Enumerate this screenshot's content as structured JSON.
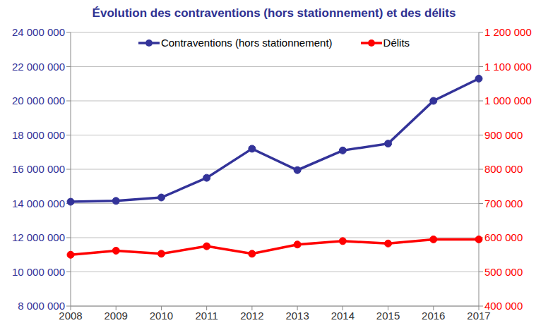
{
  "chart_data": {
    "type": "line",
    "title": "Évolution des contraventions (hors stationnement) et des délits",
    "categories": [
      "2008",
      "2009",
      "2010",
      "2011",
      "2012",
      "2013",
      "2014",
      "2015",
      "2016",
      "2017"
    ],
    "series": [
      {
        "name": "Contraventions (hors stationnement)",
        "color": "#333399",
        "marker": "circle",
        "values": [
          14100000,
          14150000,
          14350000,
          15500000,
          17200000,
          15950000,
          17100000,
          17500000,
          20000000,
          21300000
        ]
      },
      {
        "name": "Délits",
        "color": "#ff0000",
        "marker": "circle",
        "axis": "y2",
        "values": [
          550000,
          562000,
          553000,
          575000,
          553000,
          580000,
          590000,
          583000,
          595000,
          595000
        ]
      }
    ],
    "ylim": [
      8000000,
      24000000
    ],
    "yticks": [
      {
        "value": 8000000,
        "label": "8 000 000"
      },
      {
        "value": 10000000,
        "label": "10 000 000"
      },
      {
        "value": 12000000,
        "label": "12 000 000"
      },
      {
        "value": 14000000,
        "label": "14 000 000"
      },
      {
        "value": 16000000,
        "label": "16 000 000"
      },
      {
        "value": 18000000,
        "label": "18 000 000"
      },
      {
        "value": 20000000,
        "label": "20 000 000"
      },
      {
        "value": 22000000,
        "label": "22 000 000"
      },
      {
        "value": 24000000,
        "label": "24 000 000"
      }
    ],
    "y2lim": [
      400000,
      1200000
    ],
    "y2ticks": [
      {
        "value": 400000,
        "label": "400 000"
      },
      {
        "value": 500000,
        "label": "500 000"
      },
      {
        "value": 600000,
        "label": "600 000"
      },
      {
        "value": 700000,
        "label": "700 000"
      },
      {
        "value": 800000,
        "label": "800 000"
      },
      {
        "value": 900000,
        "label": "900 000"
      },
      {
        "value": 1000000,
        "label": "1 000 000"
      },
      {
        "value": 1100000,
        "label": "1 100 000"
      },
      {
        "value": 1200000,
        "label": "1 200 000"
      }
    ],
    "grid": true,
    "legend": "top"
  }
}
